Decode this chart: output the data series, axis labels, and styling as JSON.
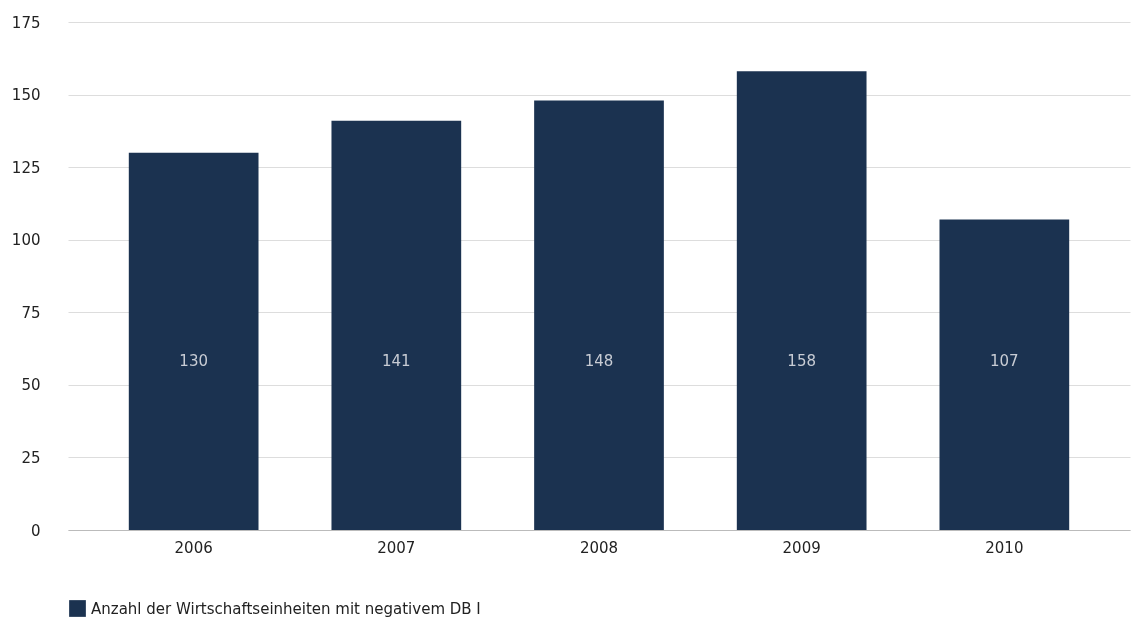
{
  "chart_data": {
    "type": "bar",
    "categories": [
      "2006",
      "2007",
      "2008",
      "2009",
      "2010"
    ],
    "series": [
      {
        "name": "Anzahl der Wirtschaftseinheiten mit negativem DB I",
        "color": "#1b3250",
        "values": [
          130,
          141,
          148,
          158,
          107
        ]
      }
    ],
    "ylim": [
      0,
      175
    ],
    "yticks": [
      0,
      25,
      50,
      75,
      100,
      125,
      150,
      175
    ],
    "grid": "y",
    "legend": "bottom",
    "data_labels": true
  }
}
